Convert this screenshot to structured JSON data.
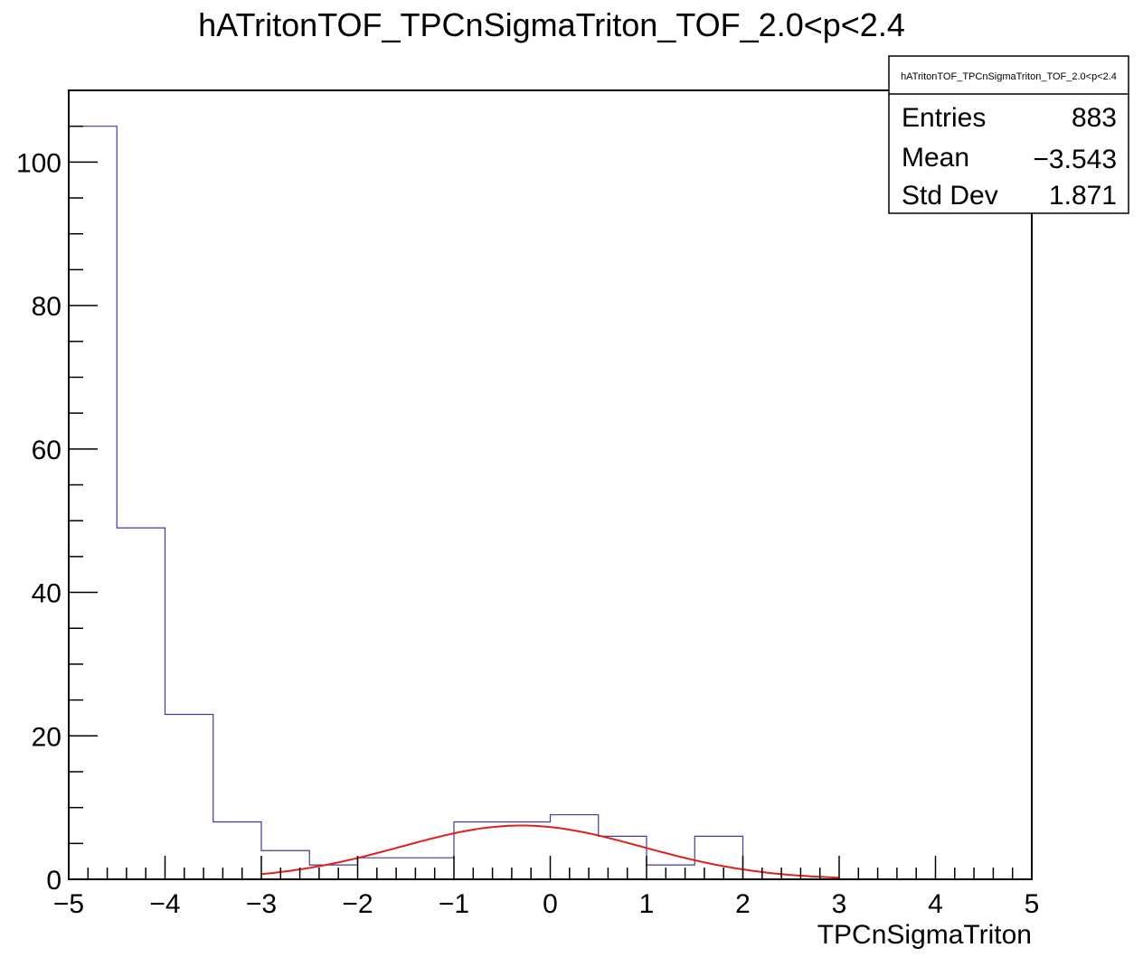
{
  "chart_data": {
    "type": "histogram",
    "title": "hATritonTOF_TPCnSigmaTriton_TOF_2.0<p<2.4",
    "xlabel": "TPCnSigmaTriton",
    "ylabel": "",
    "xlim": [
      -5,
      5
    ],
    "ylim": [
      0,
      110
    ],
    "x_ticks": [
      -5,
      -4,
      -3,
      -2,
      -1,
      0,
      1,
      2,
      3,
      4,
      5
    ],
    "x_tick_labels": [
      "−5",
      "−4",
      "−3",
      "−2",
      "−1",
      "0",
      "1",
      "2",
      "3",
      "4",
      "5"
    ],
    "y_ticks": [
      0,
      20,
      40,
      60,
      80,
      100
    ],
    "y_tick_labels": [
      "0",
      "20",
      "40",
      "60",
      "80",
      "100"
    ],
    "grid": false,
    "series": [
      {
        "kind": "histogram",
        "color": "#3d3d99",
        "bin_edges": [
          -5,
          -4.5,
          -4,
          -3.5,
          -3,
          -2.5,
          -2,
          -1.5,
          -1,
          -0.5,
          0,
          0.5,
          1,
          1.5,
          2,
          2.5,
          3,
          3.5,
          4,
          4.5,
          5
        ],
        "values": [
          105,
          49,
          23,
          8,
          4,
          2,
          3,
          3,
          8,
          8,
          9,
          6,
          2,
          6,
          0,
          0,
          0,
          0,
          0,
          0
        ]
      },
      {
        "kind": "fit",
        "color": "#e0201b",
        "function": "gaus",
        "amplitude": 7.5,
        "mean": -0.3,
        "sigma": 1.25,
        "range": [
          -3,
          3
        ]
      }
    ],
    "stats_box": {
      "name": "hATritonTOF_TPCnSigmaTriton_TOF_2.0<p<2.4",
      "rows": [
        {
          "label": "Entries",
          "value": "883"
        },
        {
          "label": "Mean",
          "value": "−3.543"
        },
        {
          "label": "Std Dev",
          "value": "1.871"
        }
      ]
    }
  }
}
